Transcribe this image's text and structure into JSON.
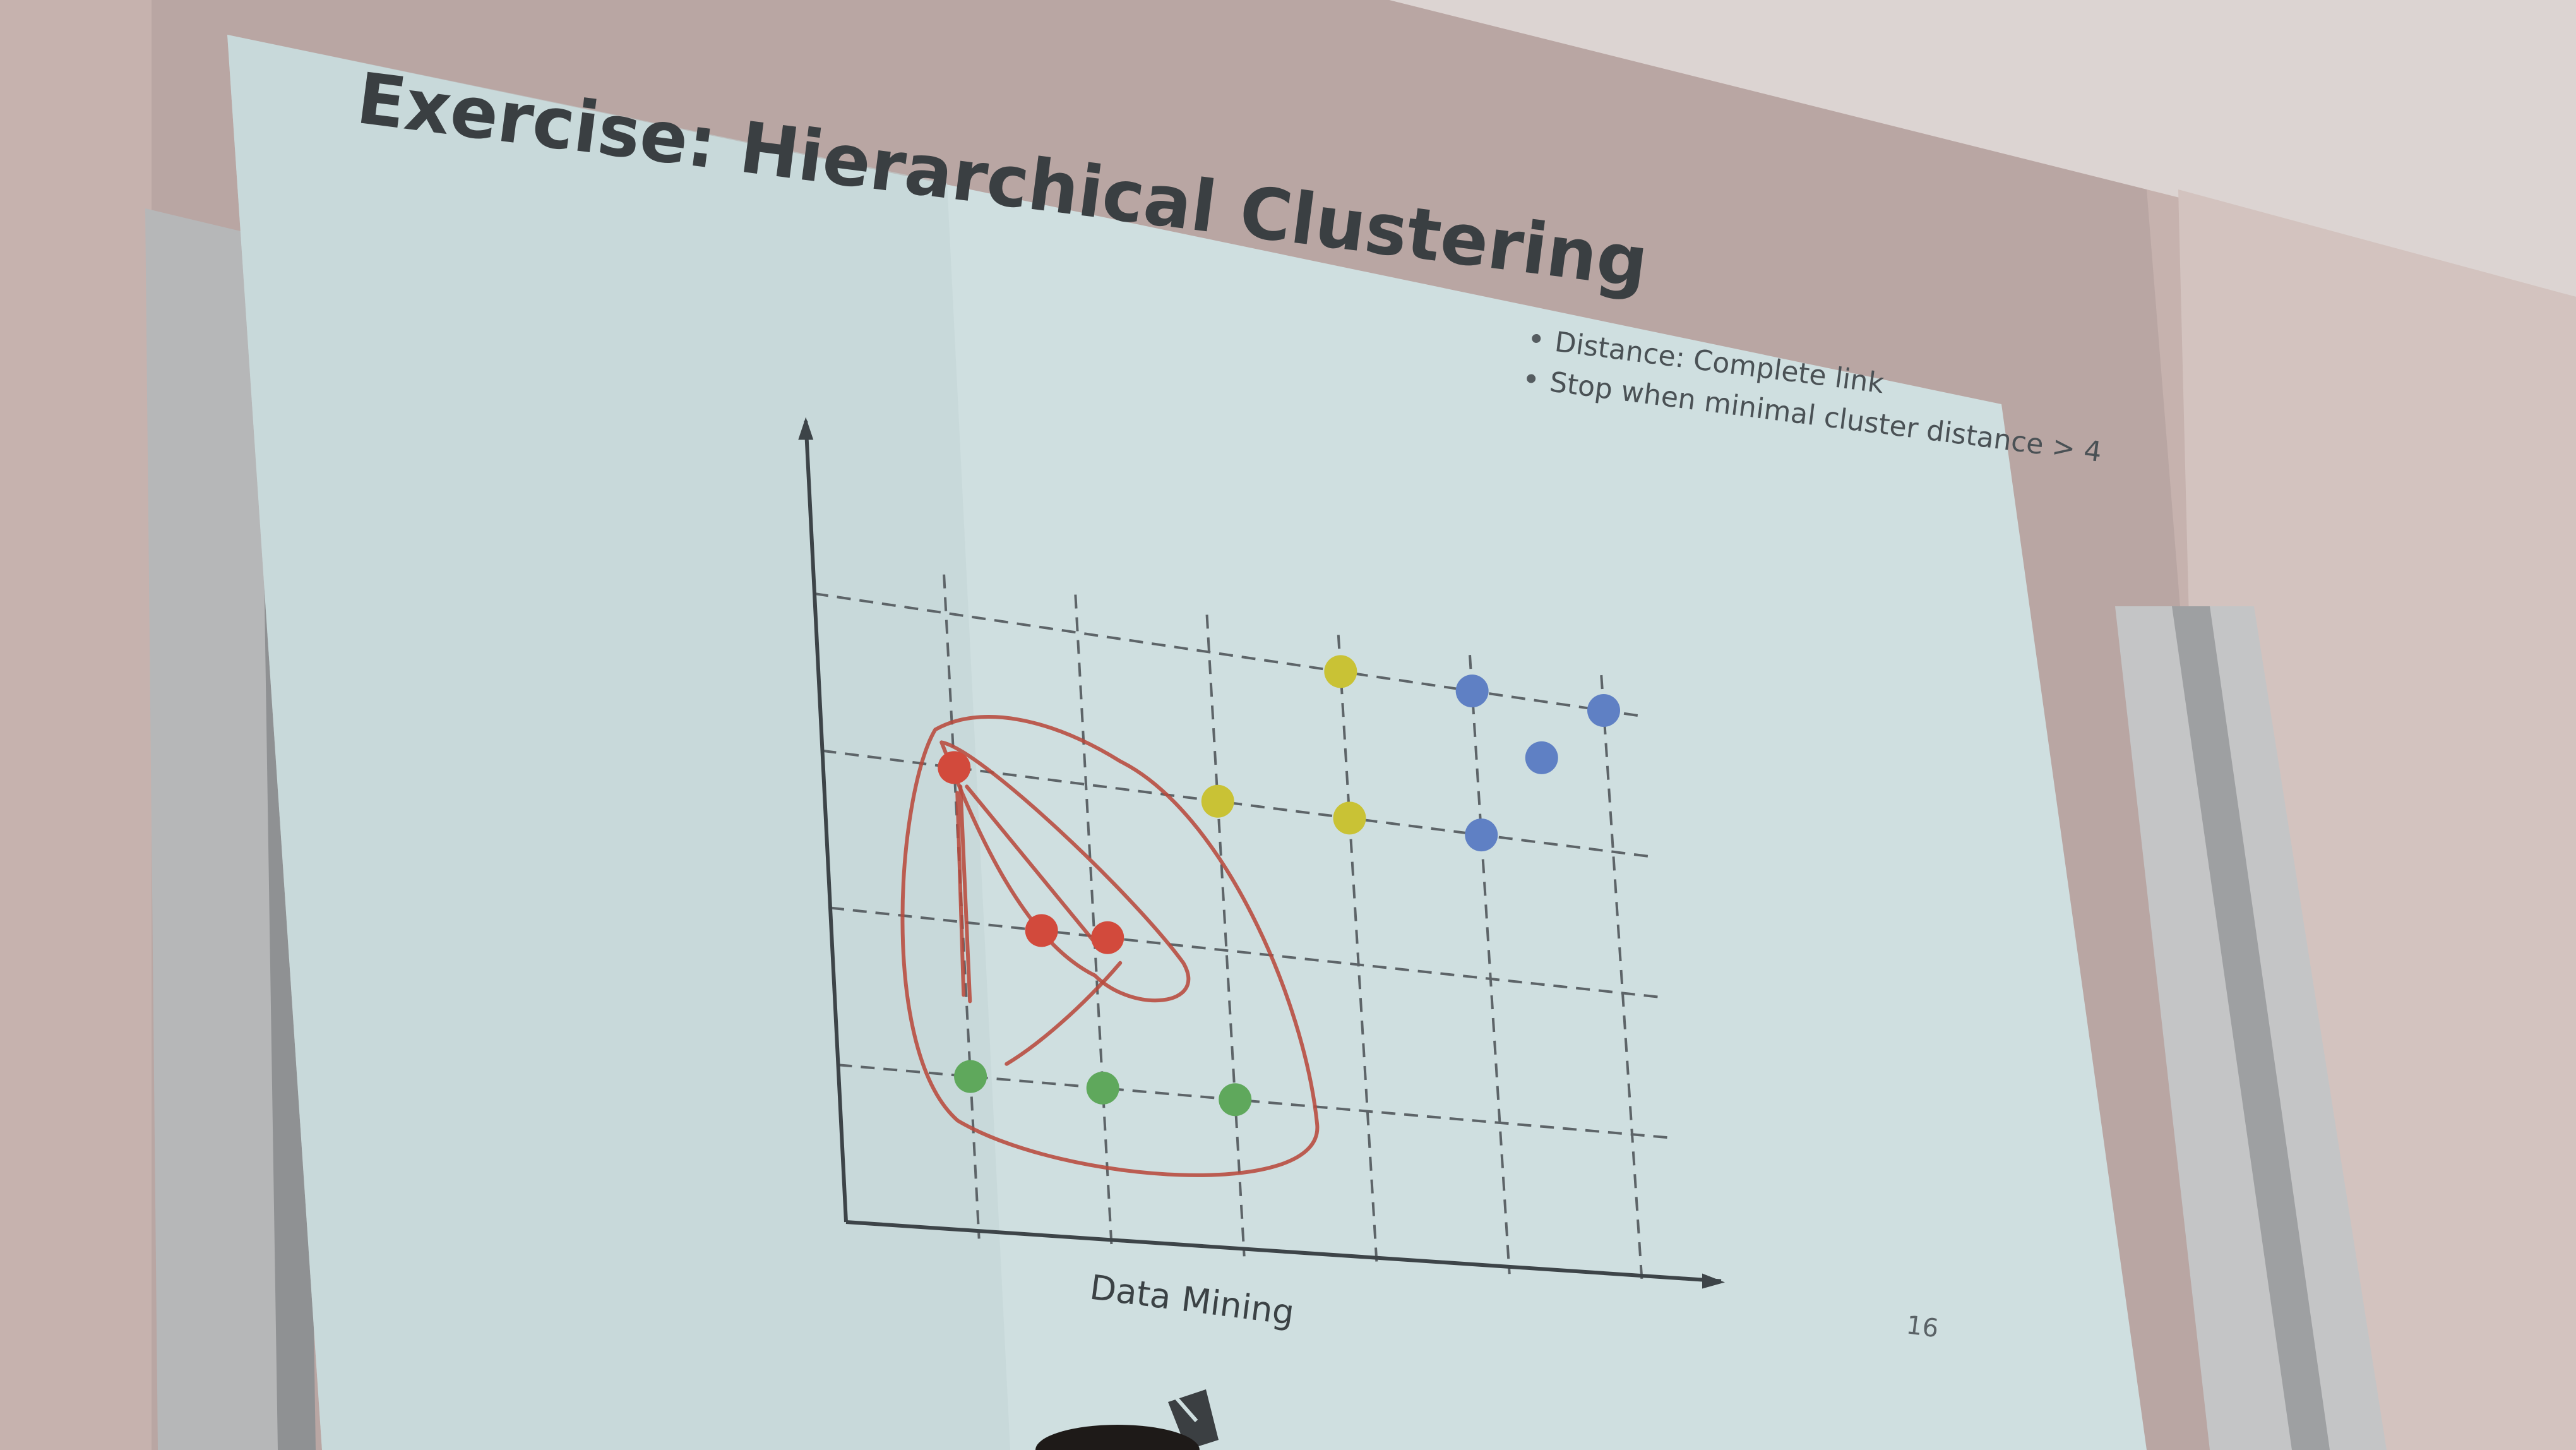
{
  "slide": {
    "title": "Exercise: Hierarchical Clustering",
    "bullets": [
      "Distance: Complete link",
      "Stop when minimal cluster distance > 4"
    ],
    "footer": "Data Mining",
    "page_number": "16"
  },
  "colors": {
    "wall": "#c6b2ae",
    "ceiling": "#d9d0cd",
    "slide_background": "#cfdfe0",
    "point_red": "#d24a3c",
    "point_yellow": "#c9c235",
    "point_blue": "#5f80c4",
    "point_green": "#5fa85c",
    "pen": "#b84a3c"
  },
  "points": [
    {
      "cluster": "red",
      "col": 1,
      "row": 3
    },
    {
      "cluster": "red",
      "col": 1.6,
      "row": 2
    },
    {
      "cluster": "red",
      "col": 2.1,
      "row": 2
    },
    {
      "cluster": "yellow",
      "col": 3,
      "row": 3
    },
    {
      "cluster": "yellow",
      "col": 4,
      "row": 3
    },
    {
      "cluster": "yellow",
      "col": 4,
      "row": 4
    },
    {
      "cluster": "blue",
      "col": 5,
      "row": 4
    },
    {
      "cluster": "blue",
      "col": 6,
      "row": 4
    },
    {
      "cluster": "blue",
      "col": 5.5,
      "row": 3.6
    },
    {
      "cluster": "blue",
      "col": 5,
      "row": 3
    },
    {
      "cluster": "green",
      "col": 1,
      "row": 1
    },
    {
      "cluster": "green",
      "col": 2,
      "row": 1
    },
    {
      "cluster": "green",
      "col": 3,
      "row": 1
    }
  ]
}
